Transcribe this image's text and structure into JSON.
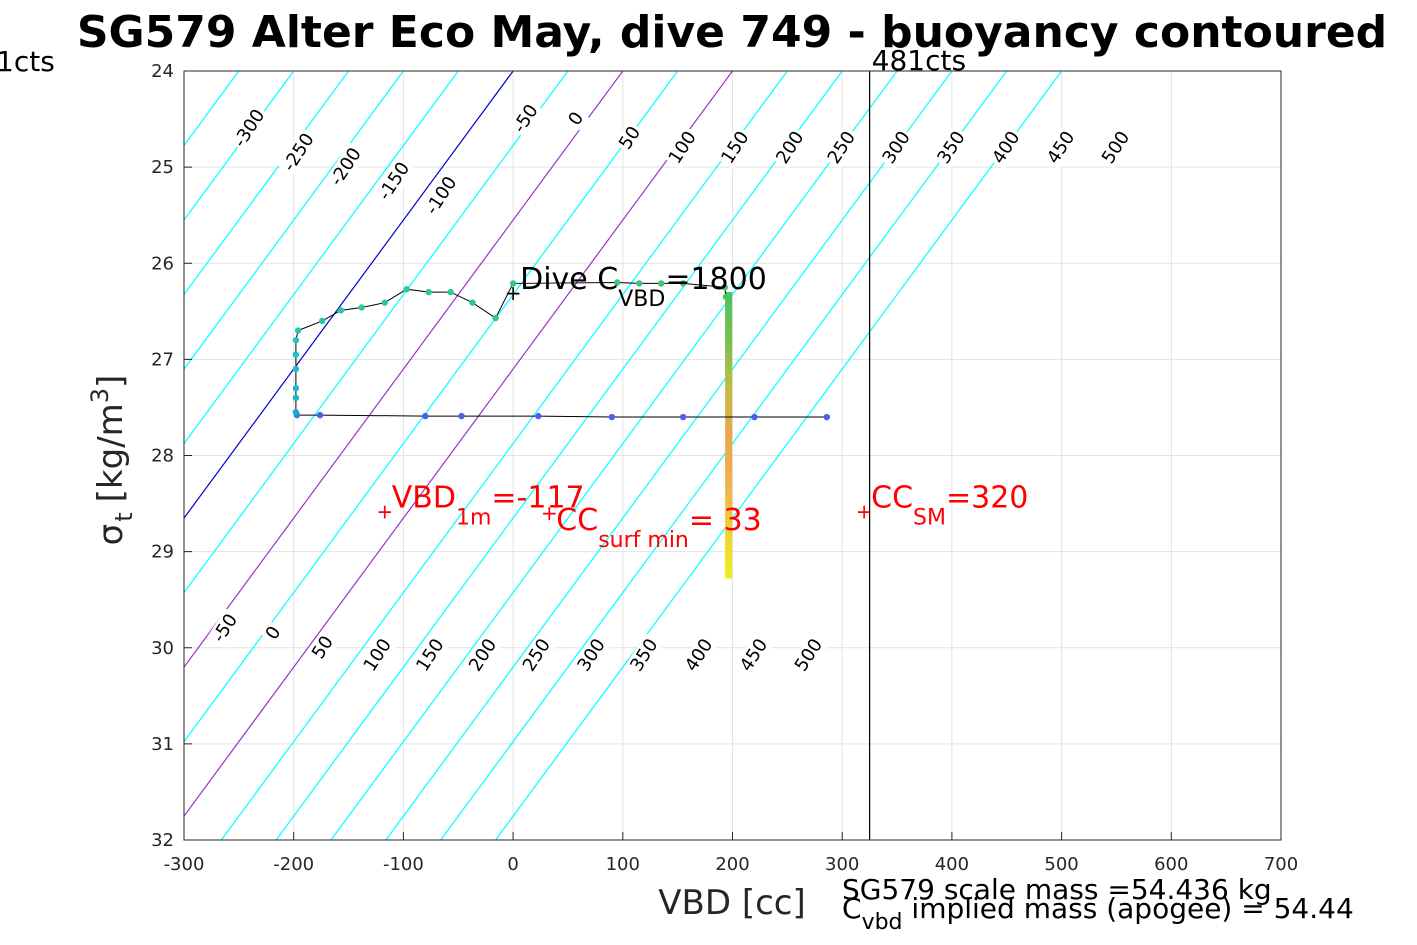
{
  "chart_data": {
    "type": "scatter",
    "title": "SG579 Alter Eco May, dive 749 - buoyancy contoured",
    "xlabel": "VBD [cc]",
    "ylabel_symbol": "σ",
    "ylabel_sub": "t",
    "ylabel_units": "[kg/m",
    "ylabel_sup": "3",
    "ylabel_close": "]",
    "xlim": [
      -300,
      700
    ],
    "ylim": [
      24,
      32
    ],
    "y_reversed": true,
    "grid": true,
    "x_ticks": [
      "-300",
      "-200",
      "-100",
      "0",
      "100",
      "200",
      "300",
      "400",
      "500",
      "600",
      "700"
    ],
    "y_ticks": [
      "24",
      "25",
      "26",
      "27",
      "28",
      "29",
      "30",
      "31",
      "32"
    ],
    "contour_lines": {
      "values": [
        -300,
        -250,
        -200,
        -150,
        -100,
        -50,
        0,
        50,
        100,
        150,
        200,
        250,
        300,
        350,
        400,
        450,
        500
      ],
      "vbd_at_sigma_24": [
        -300,
        -250,
        -200,
        -150,
        -100,
        -50,
        0,
        50,
        100,
        150,
        200,
        250,
        300,
        350,
        400,
        450,
        500
      ],
      "color_default": "#00ffff",
      "color_zero": "#0000cc",
      "color_special": "#9933cc",
      "special_values": [
        100,
        200
      ],
      "slope_vbd_per_sigma_unit": 64.5
    },
    "contour_labels_top": [
      {
        "text": "-300",
        "vbd": -240,
        "sigma": 24.6
      },
      {
        "text": "-250",
        "vbd": -195,
        "sigma": 24.85
      },
      {
        "text": "-200",
        "vbd": -152,
        "sigma": 25.0
      },
      {
        "text": "-150",
        "vbd": -108,
        "sigma": 25.15
      },
      {
        "text": "-100",
        "vbd": -65,
        "sigma": 25.3
      },
      {
        "text": "-50",
        "vbd": 12,
        "sigma": 24.5
      },
      {
        "text": "0",
        "vbd": 58,
        "sigma": 24.5
      },
      {
        "text": "50",
        "vbd": 107,
        "sigma": 24.7
      },
      {
        "text": "100",
        "vbd": 155,
        "sigma": 24.8
      },
      {
        "text": "150",
        "vbd": 203,
        "sigma": 24.8
      },
      {
        "text": "200",
        "vbd": 253,
        "sigma": 24.8
      },
      {
        "text": "250",
        "vbd": 300,
        "sigma": 24.8
      },
      {
        "text": "300",
        "vbd": 350,
        "sigma": 24.8
      },
      {
        "text": "350",
        "vbd": 400,
        "sigma": 24.8
      },
      {
        "text": "400",
        "vbd": 450,
        "sigma": 24.8
      },
      {
        "text": "450",
        "vbd": 500,
        "sigma": 24.8
      },
      {
        "text": "500",
        "vbd": 550,
        "sigma": 24.8
      }
    ],
    "contour_labels_bottom": [
      {
        "text": "-50",
        "vbd": -262,
        "sigma": 29.8
      },
      {
        "text": "0",
        "vbd": -218,
        "sigma": 29.85
      },
      {
        "text": "50",
        "vbd": -173,
        "sigma": 30.0
      },
      {
        "text": "100",
        "vbd": -123,
        "sigma": 30.08
      },
      {
        "text": "150",
        "vbd": -75,
        "sigma": 30.08
      },
      {
        "text": "200",
        "vbd": -27,
        "sigma": 30.08
      },
      {
        "text": "250",
        "vbd": 22,
        "sigma": 30.08
      },
      {
        "text": "300",
        "vbd": 72,
        "sigma": 30.08
      },
      {
        "text": "350",
        "vbd": 120,
        "sigma": 30.08
      },
      {
        "text": "400",
        "vbd": 170,
        "sigma": 30.08
      },
      {
        "text": "450",
        "vbd": 220,
        "sigma": 30.08
      },
      {
        "text": "500",
        "vbd": 270,
        "sigma": 30.08
      }
    ],
    "vertical_line": {
      "vbd": 325,
      "label": "481cts"
    },
    "left_clipped_label": "1cts",
    "dive_track": {
      "line_color": "#000000",
      "points": [
        {
          "vbd": 286,
          "sigma": 27.6,
          "color": "#4d5ff0"
        },
        {
          "vbd": 220,
          "sigma": 27.6,
          "color": "#4d5ff0"
        },
        {
          "vbd": 155,
          "sigma": 27.6,
          "color": "#4d5ff0"
        },
        {
          "vbd": 90,
          "sigma": 27.6,
          "color": "#4d5ff0"
        },
        {
          "vbd": 23,
          "sigma": 27.59,
          "color": "#4d5ff0"
        },
        {
          "vbd": -47,
          "sigma": 27.59,
          "color": "#4d5ff0"
        },
        {
          "vbd": -80,
          "sigma": 27.59,
          "color": "#4d5ff0"
        },
        {
          "vbd": -176,
          "sigma": 27.58,
          "color": "#4d5ff0"
        },
        {
          "vbd": -197,
          "sigma": 27.58,
          "color": "#2e86e0"
        },
        {
          "vbd": -198,
          "sigma": 27.55,
          "color": "#1fa6d8"
        },
        {
          "vbd": -198,
          "sigma": 27.4,
          "color": "#1fb6d0"
        },
        {
          "vbd": -198,
          "sigma": 27.3,
          "color": "#1fb6d0"
        },
        {
          "vbd": -198,
          "sigma": 27.1,
          "color": "#1fbccc"
        },
        {
          "vbd": -198,
          "sigma": 26.95,
          "color": "#20c0c4"
        },
        {
          "vbd": -198,
          "sigma": 26.8,
          "color": "#22c4bc"
        },
        {
          "vbd": -196,
          "sigma": 26.7,
          "color": "#24c6b4"
        },
        {
          "vbd": -174,
          "sigma": 26.6,
          "color": "#28c6ac"
        },
        {
          "vbd": -157,
          "sigma": 26.49,
          "color": "#28c6a4"
        },
        {
          "vbd": -138,
          "sigma": 26.46,
          "color": "#2ac6a0"
        },
        {
          "vbd": -117,
          "sigma": 26.41,
          "color": "#2cc6a0"
        },
        {
          "vbd": -97,
          "sigma": 26.27,
          "color": "#2ec69c"
        },
        {
          "vbd": -77,
          "sigma": 26.3,
          "color": "#30c698"
        },
        {
          "vbd": -57,
          "sigma": 26.3,
          "color": "#30c690"
        },
        {
          "vbd": -37,
          "sigma": 26.41,
          "color": "#30c68c"
        },
        {
          "vbd": -16,
          "sigma": 26.57,
          "color": "#32c688"
        },
        {
          "vbd": 0,
          "sigma": 26.21,
          "color": "#34c684"
        },
        {
          "vbd": 95,
          "sigma": 26.2,
          "color": "#38c67c"
        },
        {
          "vbd": 115,
          "sigma": 26.21,
          "color": "#3cc678"
        },
        {
          "vbd": 135,
          "sigma": 26.21,
          "color": "#40c670"
        },
        {
          "vbd": 155,
          "sigma": 26.21,
          "color": "#44c66c"
        },
        {
          "vbd": 193,
          "sigma": 26.25,
          "color": "#48c668"
        },
        {
          "vbd": 194,
          "sigma": 26.35,
          "color": "#4cc664"
        }
      ]
    },
    "apogee_stripe": {
      "vbd": 196,
      "sigma_top": 26.3,
      "sigma_bottom": 29.28,
      "colors": [
        "#4cc262",
        "#78be50",
        "#bfbe40",
        "#e8a850",
        "#f0b050",
        "#f0d030",
        "#f0f020"
      ]
    },
    "annotations": [
      {
        "id": "dive_cvbd",
        "color": "#000000",
        "marker_vbd": 0,
        "marker_sigma": 26.31,
        "main": "Dive C",
        "sub": "VBD",
        "tail": "=1800"
      },
      {
        "id": "vbd_1m",
        "color": "#ff0000",
        "marker_vbd": -117,
        "marker_sigma": 28.58,
        "main": "VBD",
        "sub": "1m",
        "tail": "=-117"
      },
      {
        "id": "cc_surf_min",
        "color": "#ff0000",
        "marker_vbd": 33,
        "marker_sigma": 28.6,
        "main": "CC",
        "sub": "surf min",
        "tail": "= 33"
      },
      {
        "id": "cc_sm",
        "color": "#ff0000",
        "marker_vbd": 320,
        "marker_sigma": 28.58,
        "main": "CC",
        "sub": "SM",
        "tail": "=320"
      }
    ],
    "footnote_line1": "SG579 scale mass =54.436 kg",
    "footnote_line2_main": "C",
    "footnote_line2_sub": "vbd",
    "footnote_line2_tail": " implied mass (apogee) = 54.44"
  }
}
